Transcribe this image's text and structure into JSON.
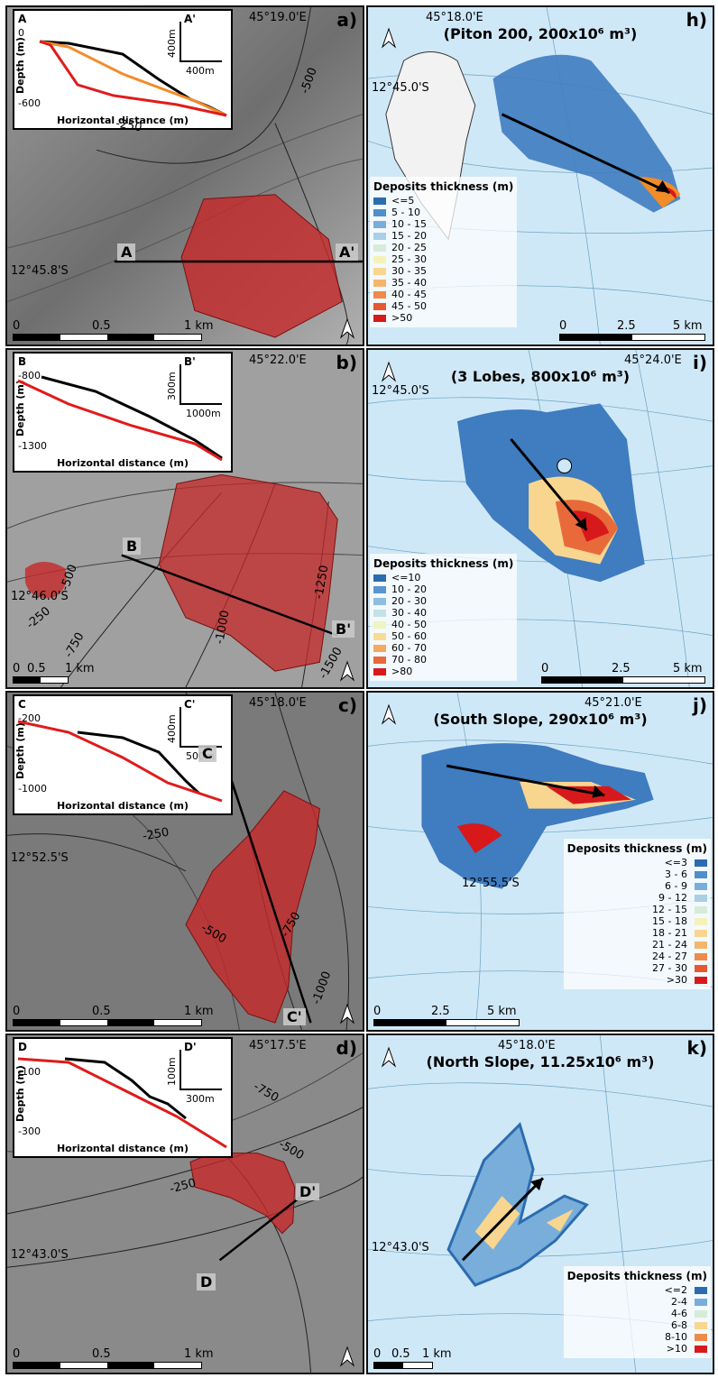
{
  "colors": {
    "deposit_red": "#c62828",
    "black_profile": "#000000",
    "red_profile": "#e01b1b",
    "orange_profile": "#f28c28",
    "water_blue": "#cfe8f7"
  },
  "panels_left": [
    {
      "letter": "a)",
      "lon": "45°19.0'E",
      "lat": "12°45.8'S",
      "profile_start": "A",
      "profile_end": "A'",
      "inset": {
        "start": "A",
        "end": "A'",
        "top_tick": "0",
        "bottom_tick": "-600",
        "ylabel": "Depth (m)",
        "xlabel": "Horizontal distance (m)",
        "scale_v": "400m",
        "scale_h": "400m"
      },
      "contours": [
        "-250",
        "-500"
      ],
      "scale": [
        "0",
        "0.5",
        "1 km"
      ]
    },
    {
      "letter": "b)",
      "lon": "45°22.0'E",
      "lat": "12°46.0'S",
      "profile_start": "B",
      "profile_end": "B'",
      "inset": {
        "start": "B",
        "end": "B'",
        "top_tick": "-800",
        "bottom_tick": "-1300",
        "ylabel": "Depth (m)",
        "xlabel": "Horizontal distance (m)",
        "scale_v": "300m",
        "scale_h": "1000m"
      },
      "contours": [
        "-500",
        "-250",
        "-750",
        "-1000",
        "-1250",
        "-1500"
      ],
      "scale": [
        "0",
        "0.5",
        "1 km"
      ]
    },
    {
      "letter": "c)",
      "lon": "45°18.0'E",
      "lat": "12°52.5'S",
      "profile_start": "C",
      "profile_end": "C'",
      "inset": {
        "start": "C",
        "end": "C'",
        "top_tick": "-200",
        "bottom_tick": "-1000",
        "ylabel": "Depth (m)",
        "xlabel": "Horizontal distance (m)",
        "scale_v": "400m",
        "scale_h": "500m"
      },
      "contours": [
        "-250",
        "-500",
        "-750",
        "-1000"
      ],
      "scale": [
        "0",
        "0.5",
        "1 km"
      ]
    },
    {
      "letter": "d)",
      "lon": "45°17.5'E",
      "lat": "12°43.0'S",
      "profile_start": "D",
      "profile_end": "D'",
      "inset": {
        "start": "D",
        "end": "D'",
        "top_tick": "-100",
        "bottom_tick": "-300",
        "ylabel": "Depth (m)",
        "xlabel": "Horizontal distance (m)",
        "scale_v": "100m",
        "scale_h": "300m"
      },
      "contours": [
        "-750",
        "-500",
        "-250"
      ],
      "scale": [
        "0",
        "0.5",
        "1 km"
      ]
    }
  ],
  "panels_right": [
    {
      "letter": "h)",
      "lon": "45°18.0'E",
      "lat": "12°45.0'S",
      "title": "(Piton 200, 200x10⁶ m³)",
      "legend_title": "Deposits thickness (m)",
      "legend": [
        {
          "label": "<=5",
          "color": "#2b6cb0"
        },
        {
          "label": "5 - 10",
          "color": "#4f8fcc"
        },
        {
          "label": "10 - 15",
          "color": "#79aedb"
        },
        {
          "label": "15 - 20",
          "color": "#a9cfe6"
        },
        {
          "label": "20 - 25",
          "color": "#d6ecd8"
        },
        {
          "label": "25 - 30",
          "color": "#f4f2b8"
        },
        {
          "label": "30 - 35",
          "color": "#f8d690"
        },
        {
          "label": "35 - 40",
          "color": "#f5b56c"
        },
        {
          "label": "40 - 45",
          "color": "#ef8a4a"
        },
        {
          "label": "45 - 50",
          "color": "#e4592f"
        },
        {
          "label": ">50",
          "color": "#d7191c"
        }
      ],
      "scale": [
        "0",
        "2.5",
        "5 km"
      ]
    },
    {
      "letter": "i)",
      "lon": "45°24.0'E",
      "lat": "12°45.0'S",
      "title": "(3 Lobes, 800x10⁶ m³)",
      "legend_title": "Deposits thickness (m)",
      "legend": [
        {
          "label": "<=10",
          "color": "#2b6cb0"
        },
        {
          "label": "10 - 20",
          "color": "#5a95cf"
        },
        {
          "label": "20 - 30",
          "color": "#8dbde0"
        },
        {
          "label": "30 - 40",
          "color": "#c4e1e6"
        },
        {
          "label": "40 - 50",
          "color": "#eef5c0"
        },
        {
          "label": "50 - 60",
          "color": "#f9dc92"
        },
        {
          "label": "60 - 70",
          "color": "#f4a95e"
        },
        {
          "label": "70 - 80",
          "color": "#e86a3a"
        },
        {
          "label": ">80",
          "color": "#d7191c"
        }
      ],
      "scale": [
        "0",
        "2.5",
        "5 km"
      ]
    },
    {
      "letter": "j)",
      "lon": "45°21.0'E",
      "lat": "12°55.5'S",
      "title": "(South Slope, 290x10⁶ m³)",
      "legend_title": "Deposits thickness (m)",
      "legend": [
        {
          "label": "<=3",
          "color": "#2b6cb0"
        },
        {
          "label": "3 - 6",
          "color": "#4f8fcc"
        },
        {
          "label": "6 - 9",
          "color": "#79aedb"
        },
        {
          "label": "9 - 12",
          "color": "#a9cfe6"
        },
        {
          "label": "12 - 15",
          "color": "#d6ecd8"
        },
        {
          "label": "15 - 18",
          "color": "#f4f2b8"
        },
        {
          "label": "18 - 21",
          "color": "#f8d690"
        },
        {
          "label": "21 - 24",
          "color": "#f5b56c"
        },
        {
          "label": "24 - 27",
          "color": "#ef8a4a"
        },
        {
          "label": "27 - 30",
          "color": "#e4592f"
        },
        {
          "label": ">30",
          "color": "#d7191c"
        }
      ],
      "scale": [
        "0",
        "2.5",
        "5 km"
      ]
    },
    {
      "letter": "k)",
      "lon": "45°18.0'E",
      "lat": "12°43.0'S",
      "title": "(North Slope, 11.25x10⁶ m³)",
      "legend_title": "Deposits thickness (m)",
      "legend": [
        {
          "label": "<=2",
          "color": "#2b6cb0"
        },
        {
          "label": "2-4",
          "color": "#79aedb"
        },
        {
          "label": "4-6",
          "color": "#d6ecd8"
        },
        {
          "label": "6-8",
          "color": "#f8d690"
        },
        {
          "label": "8-10",
          "color": "#ef8a4a"
        },
        {
          "label": ">10",
          "color": "#d7191c"
        }
      ],
      "scale": [
        "0",
        "0.5",
        "1 km"
      ]
    }
  ]
}
